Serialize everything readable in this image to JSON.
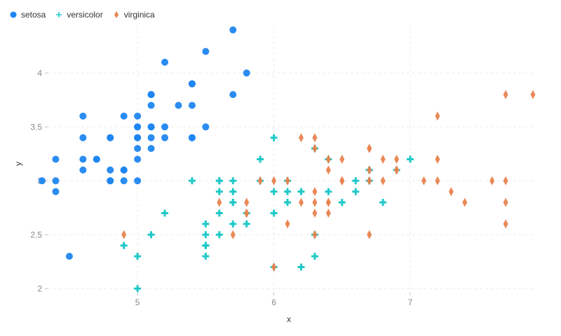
{
  "chart_data": {
    "type": "scatter",
    "xlabel": "x",
    "ylabel": "y",
    "xlim": [
      4.3,
      7.9
    ],
    "ylim": [
      1.95,
      4.45
    ],
    "xticks": [
      5,
      6,
      7
    ],
    "yticks": [
      2,
      2.5,
      3,
      3.5,
      4
    ],
    "grid": true,
    "legend_position": "top-left",
    "series": [
      {
        "name": "setosa",
        "color": "#1f86f0",
        "marker": "circle",
        "x": [
          5.1,
          4.9,
          4.7,
          4.6,
          5.0,
          5.4,
          4.6,
          5.0,
          4.4,
          4.9,
          5.4,
          4.8,
          4.8,
          4.3,
          5.8,
          5.7,
          5.4,
          5.1,
          5.7,
          5.1,
          5.4,
          5.1,
          4.6,
          5.1,
          4.8,
          5.0,
          5.0,
          5.2,
          5.2,
          4.7,
          4.8,
          5.4,
          5.2,
          5.5,
          4.9,
          5.0,
          5.5,
          4.9,
          4.4,
          5.1,
          5.0,
          4.5,
          4.4,
          5.0,
          5.1,
          4.8,
          5.1,
          4.6,
          5.3,
          5.0
        ],
        "y": [
          3.5,
          3.0,
          3.2,
          3.1,
          3.6,
          3.9,
          3.4,
          3.4,
          2.9,
          3.1,
          3.7,
          3.4,
          3.0,
          3.0,
          4.0,
          4.4,
          3.9,
          3.5,
          3.8,
          3.8,
          3.4,
          3.7,
          3.6,
          3.3,
          3.4,
          3.0,
          3.4,
          3.5,
          3.4,
          3.2,
          3.1,
          3.4,
          4.1,
          4.2,
          3.1,
          3.2,
          3.5,
          3.6,
          3.0,
          3.4,
          3.5,
          2.3,
          3.2,
          3.5,
          3.8,
          3.0,
          3.8,
          3.2,
          3.7,
          3.3
        ]
      },
      {
        "name": "versicolor",
        "color": "#1fc8c8",
        "marker": "plus",
        "x": [
          7.0,
          6.4,
          6.9,
          5.5,
          6.5,
          5.7,
          6.3,
          4.9,
          6.6,
          5.2,
          5.0,
          5.9,
          6.0,
          6.1,
          5.6,
          6.7,
          5.6,
          5.8,
          6.2,
          5.6,
          5.9,
          6.1,
          6.3,
          6.1,
          6.4,
          6.6,
          6.8,
          6.7,
          6.0,
          5.7,
          5.5,
          5.5,
          5.8,
          6.0,
          5.4,
          6.0,
          6.7,
          6.3,
          5.6,
          5.5,
          5.5,
          6.1,
          5.8,
          5.0,
          5.6,
          5.7,
          5.7,
          6.2,
          5.1,
          5.7
        ],
        "y": [
          3.2,
          3.2,
          3.1,
          2.3,
          2.8,
          2.8,
          3.3,
          2.4,
          2.9,
          2.7,
          2.0,
          3.0,
          2.2,
          2.9,
          2.9,
          3.1,
          3.0,
          2.7,
          2.2,
          2.5,
          3.2,
          2.8,
          2.5,
          2.8,
          2.9,
          3.0,
          2.8,
          3.0,
          2.9,
          2.6,
          2.4,
          2.4,
          2.7,
          2.7,
          3.0,
          3.4,
          3.1,
          2.3,
          3.0,
          2.5,
          2.6,
          3.0,
          2.6,
          2.3,
          2.7,
          3.0,
          2.9,
          2.9,
          2.5,
          2.8
        ]
      },
      {
        "name": "virginica",
        "color": "#e8834e",
        "marker": "diamond",
        "x": [
          6.3,
          5.8,
          7.1,
          6.3,
          6.5,
          7.6,
          4.9,
          7.3,
          6.7,
          7.2,
          6.5,
          6.4,
          6.8,
          5.7,
          5.8,
          6.4,
          6.5,
          7.7,
          7.7,
          6.0,
          6.9,
          5.6,
          7.7,
          6.3,
          6.7,
          7.2,
          6.2,
          6.1,
          6.4,
          7.2,
          7.4,
          7.9,
          6.4,
          6.3,
          6.1,
          7.7,
          6.3,
          6.4,
          6.0,
          6.9,
          6.7,
          6.9,
          5.8,
          6.8,
          6.7,
          6.7,
          6.3,
          6.5,
          6.2,
          5.9
        ],
        "y": [
          3.3,
          2.7,
          3.0,
          2.9,
          3.0,
          3.0,
          2.5,
          2.9,
          2.5,
          3.6,
          3.2,
          2.7,
          3.0,
          2.5,
          2.8,
          3.2,
          3.0,
          3.8,
          2.6,
          2.2,
          3.2,
          2.8,
          2.8,
          2.7,
          3.3,
          3.2,
          2.8,
          3.0,
          2.8,
          3.0,
          2.8,
          3.8,
          2.8,
          2.8,
          2.6,
          3.0,
          3.4,
          3.1,
          3.0,
          3.1,
          3.1,
          3.1,
          2.7,
          3.2,
          3.3,
          3.0,
          2.5,
          3.0,
          3.4,
          3.0
        ]
      }
    ]
  }
}
